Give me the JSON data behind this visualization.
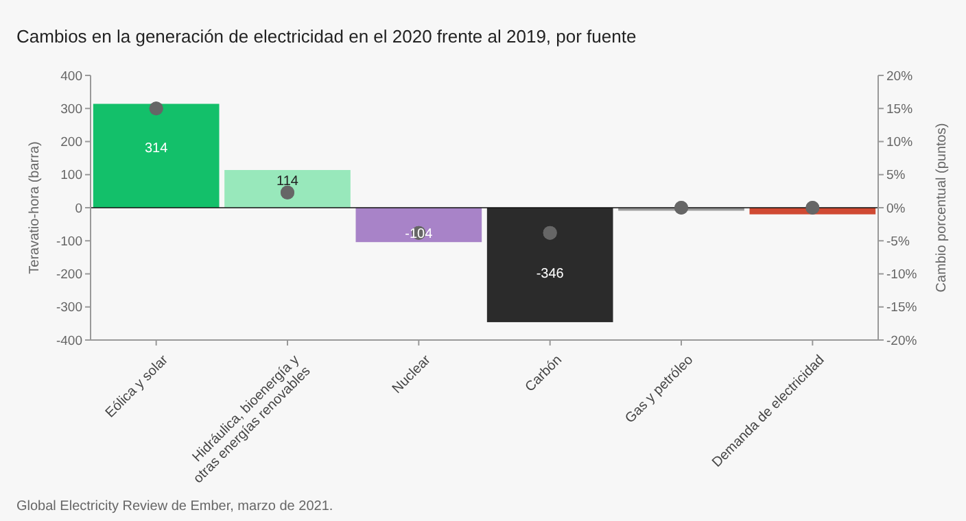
{
  "chart_data": {
    "type": "bar",
    "title": "Cambios en la generación de electricidad en el 2020 frente al 2019, por fuente",
    "ylabel": "Teravatio-hora (barra)",
    "y2label": "Cambio porcentual (puntos)",
    "categories": [
      "Eólica y solar",
      "Hidráulica, bioenergía y otras energías renovables",
      "Nuclear",
      "Carbón",
      "Gas y petróleo",
      "Demanda de electricidad"
    ],
    "series": [
      {
        "colors": [
          "#13c06a",
          "#98e8bb",
          "#a883c8",
          "#2b2b2b",
          "#999999",
          "#d04a33"
        ],
        "values": [
          314,
          114,
          -104,
          -346,
          -9,
          -20
        ],
        "value_labels": [
          "314",
          "114",
          "-104",
          "-346",
          null,
          null
        ]
      },
      {
        "type": "scatter",
        "axis": "y2",
        "color": "#666666",
        "values": [
          15,
          2.3,
          -3.8,
          -3.8,
          0,
          0
        ]
      }
    ],
    "ylim": [
      -400,
      400
    ],
    "yticks": [
      -400,
      -300,
      -200,
      -100,
      0,
      100,
      200,
      300,
      400
    ],
    "y2lim": [
      -20,
      20
    ],
    "y2ticks": [
      {
        "value": -20,
        "label": "-20%"
      },
      {
        "value": -15,
        "label": "-15%"
      },
      {
        "value": -10,
        "label": "-10%"
      },
      {
        "value": -5,
        "label": "-5%"
      },
      {
        "value": 0,
        "label": "0%"
      },
      {
        "value": 5,
        "label": "5%"
      },
      {
        "value": 10,
        "label": "10%"
      },
      {
        "value": 15,
        "label": "15%"
      },
      {
        "value": 20,
        "label": "20%"
      }
    ],
    "marker": "circle",
    "annotations": [
      "Global Electricity Review de Ember, marzo de 2021."
    ]
  }
}
